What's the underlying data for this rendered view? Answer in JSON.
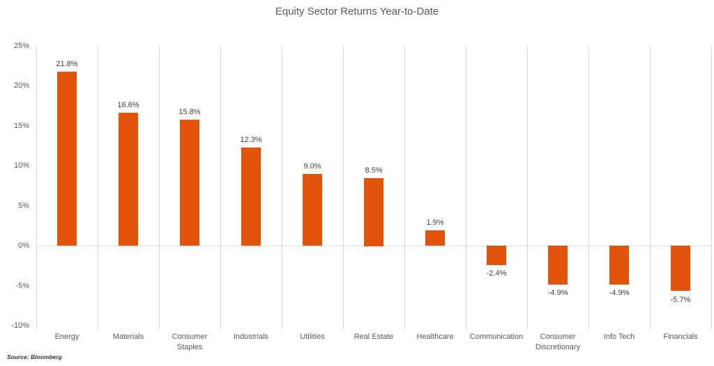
{
  "title": "Equity Sector Returns Year-to-Date",
  "source_note": "Source: Bloomberg",
  "chart_data": {
    "type": "bar",
    "title": "Equity Sector Returns Year-to-Date",
    "categories": [
      "Energy",
      "Materials",
      "Consumer Staples",
      "Industrials",
      "Utilities",
      "Real Estate",
      "Healthcare",
      "Communication",
      "Consumer Discretionary",
      "Info Tech",
      "Financials"
    ],
    "values": [
      21.8,
      16.6,
      15.8,
      12.3,
      9.0,
      8.5,
      1.9,
      -2.4,
      -4.9,
      -4.9,
      -5.7
    ],
    "data_labels": [
      "21.8%",
      "16.6%",
      "15.8%",
      "12.3%",
      "9.0%",
      "8.5%",
      "1.9%",
      "-2.4%",
      "-4.9%",
      "-4.9%",
      "-5.7%"
    ],
    "xlabel": "",
    "ylabel": "",
    "ylim": [
      -10,
      25
    ],
    "ytick_values": [
      25,
      20,
      15,
      10,
      5,
      0,
      -5,
      -10
    ],
    "ytick_labels": [
      "25%",
      "20%",
      "15%",
      "10%",
      "5%",
      "0%",
      "-5%",
      "-10%"
    ],
    "legend": "none",
    "grid": "vertical category separators + zero axis line",
    "source": "Source: Bloomberg",
    "colors": {
      "bar": "#E2540A",
      "gridline": "#D9D9D9",
      "zero_line": "#D9D9D9",
      "title_text": "#595959",
      "tick_label_text": "#595959",
      "data_label_text": "#404040",
      "source_text": "#333333",
      "background": "#FFFFFF"
    }
  }
}
